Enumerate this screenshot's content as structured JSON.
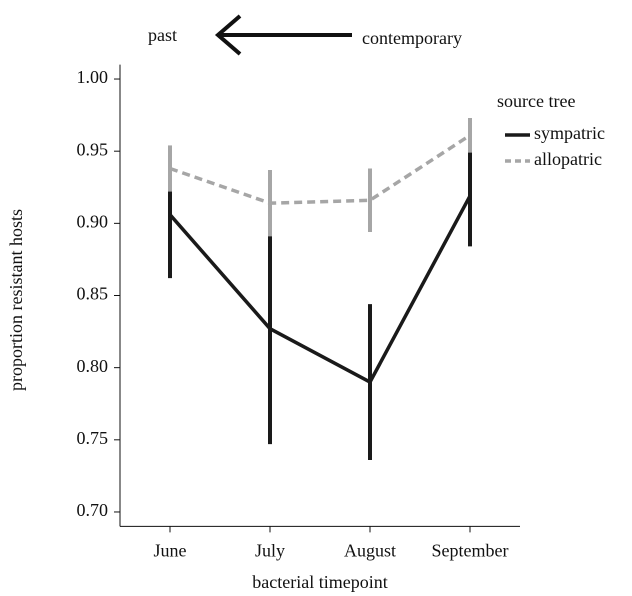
{
  "chart_data": {
    "type": "line",
    "annotations": [
      "past",
      "contemporary"
    ],
    "ylabel": "proportion resistant hosts",
    "xlabel": "bacterial timepoint",
    "legend_title": "source tree",
    "categories": [
      "June",
      "July",
      "August",
      "September"
    ],
    "series": [
      {
        "name": "sympatric",
        "color": "#1a1a1a",
        "dashed": false,
        "values": [
          0.906,
          0.827,
          0.79,
          0.919
        ],
        "errors": [
          0.044,
          0.08,
          0.054,
          0.035
        ]
      },
      {
        "name": "allopatric",
        "color": "#a6a6a6",
        "dashed": true,
        "values": [
          0.938,
          0.914,
          0.916,
          0.961
        ],
        "errors": [
          0.016,
          0.023,
          0.022,
          0.012
        ]
      }
    ],
    "ylim": [
      0.69,
      1.01
    ],
    "yticks": [
      {
        "value": 0.7,
        "label": "0.70"
      },
      {
        "value": 0.75,
        "label": "0.75"
      },
      {
        "value": 0.8,
        "label": "0.80"
      },
      {
        "value": 0.85,
        "label": "0.85"
      },
      {
        "value": 0.9,
        "label": "0.90"
      },
      {
        "value": 0.95,
        "label": "0.95"
      },
      {
        "value": 1.0,
        "label": "1.00"
      }
    ],
    "legend": "top-right"
  }
}
